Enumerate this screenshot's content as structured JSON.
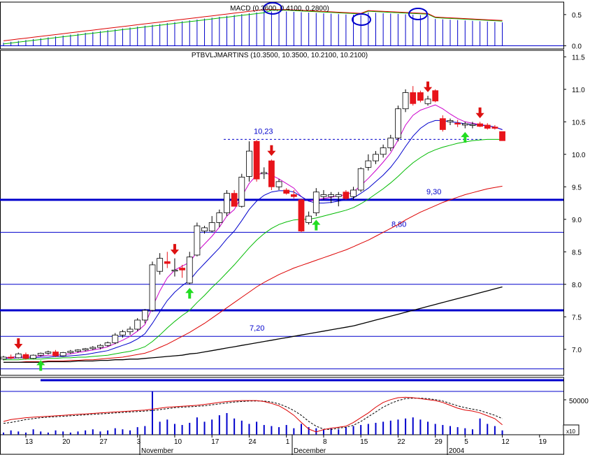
{
  "colors": {
    "up_candle": "#ffffff",
    "down_candle": "#e8141b",
    "line_blue": "#0000cc",
    "ma_fast": "#cc00cc",
    "ma_mid": "#0000cc",
    "ma_green": "#00bb00",
    "ma_red": "#dd0000",
    "ma_black": "#000000",
    "arrow_up": "#22dd22",
    "arrow_down": "#dd1111"
  },
  "chart_data": [
    {
      "type": "bar",
      "panel": "macd",
      "title": "MACD (0.3600, 0.4100, 0.2800)",
      "yticks": [
        0.0,
        0.5
      ],
      "ylim": [
        -0.05,
        0.7
      ],
      "histogram_icon": "macd-histogram",
      "circle_markers": [
        "bar-26",
        "bar-48",
        "bar-57"
      ]
    },
    {
      "type": "candlestick",
      "panel": "price",
      "title": "PTBVLJMARTINS (10.3500, 10.3500, 10.2100, 10.2100)",
      "ylim": [
        6.6,
        11.6
      ],
      "yticks": [
        7.0,
        7.5,
        8.0,
        8.5,
        9.0,
        9.5,
        10.0,
        10.5,
        11.0,
        11.5
      ],
      "xticks": [
        "13",
        "20",
        "27",
        "3",
        "10",
        "17",
        "24",
        "1",
        "8",
        "15",
        "22",
        "29",
        "5",
        "12",
        "19"
      ],
      "month_labels": [
        "November",
        "December",
        "2004"
      ],
      "ohlc": [
        [
          6.85,
          6.9,
          6.83,
          6.88
        ],
        [
          6.88,
          6.92,
          6.85,
          6.87
        ],
        [
          6.87,
          6.95,
          6.86,
          6.93
        ],
        [
          6.92,
          6.95,
          6.84,
          6.86
        ],
        [
          6.86,
          6.92,
          6.85,
          6.91
        ],
        [
          6.91,
          6.95,
          6.89,
          6.94
        ],
        [
          6.94,
          6.98,
          6.92,
          6.96
        ],
        [
          6.96,
          6.99,
          6.88,
          6.9
        ],
        [
          6.9,
          6.96,
          6.89,
          6.95
        ],
        [
          6.95,
          6.99,
          6.93,
          6.97
        ],
        [
          6.97,
          7.0,
          6.95,
          6.99
        ],
        [
          6.99,
          7.02,
          6.97,
          7.01
        ],
        [
          7.01,
          7.05,
          6.99,
          7.03
        ],
        [
          7.03,
          7.08,
          7.0,
          7.06
        ],
        [
          7.06,
          7.12,
          7.04,
          7.1
        ],
        [
          7.1,
          7.25,
          7.08,
          7.22
        ],
        [
          7.22,
          7.3,
          7.18,
          7.27
        ],
        [
          7.27,
          7.35,
          7.22,
          7.31
        ],
        [
          7.31,
          7.48,
          7.28,
          7.45
        ],
        [
          7.45,
          7.62,
          7.4,
          7.6
        ],
        [
          7.6,
          8.35,
          7.58,
          8.3
        ],
        [
          8.2,
          8.48,
          8.15,
          8.4
        ],
        [
          8.35,
          8.5,
          8.25,
          8.32
        ],
        [
          8.22,
          8.4,
          8.12,
          8.22
        ],
        [
          8.25,
          8.3,
          8.1,
          8.22
        ],
        [
          8.02,
          8.5,
          8.0,
          8.42
        ],
        [
          8.45,
          8.95,
          8.43,
          8.9
        ],
        [
          8.82,
          8.9,
          8.78,
          8.87
        ],
        [
          8.82,
          9.05,
          8.8,
          8.95
        ],
        [
          8.95,
          9.15,
          8.88,
          9.1
        ],
        [
          9.1,
          9.45,
          9.05,
          9.4
        ],
        [
          9.4,
          9.45,
          9.2,
          9.2
        ],
        [
          9.2,
          9.7,
          9.18,
          9.65
        ],
        [
          9.66,
          10.2,
          9.58,
          10.05
        ],
        [
          10.2,
          10.22,
          9.58,
          9.62
        ],
        [
          9.7,
          9.8,
          9.62,
          9.72
        ],
        [
          9.9,
          9.92,
          9.45,
          9.5
        ],
        [
          9.5,
          9.62,
          9.45,
          9.58
        ],
        [
          9.45,
          9.48,
          9.38,
          9.4
        ],
        [
          9.38,
          9.45,
          9.32,
          9.35
        ],
        [
          9.3,
          9.32,
          8.8,
          8.82
        ],
        [
          8.95,
          9.12,
          8.92,
          9.05
        ],
        [
          9.1,
          9.48,
          9.05,
          9.42
        ],
        [
          9.35,
          9.45,
          9.3,
          9.38
        ],
        [
          9.35,
          9.42,
          9.25,
          9.38
        ],
        [
          9.35,
          9.42,
          9.2,
          9.38
        ],
        [
          9.42,
          9.45,
          9.3,
          9.32
        ],
        [
          9.35,
          9.5,
          9.3,
          9.45
        ],
        [
          9.45,
          9.8,
          9.42,
          9.78
        ],
        [
          9.8,
          10.0,
          9.75,
          9.9
        ],
        [
          9.9,
          10.05,
          9.85,
          10.0
        ],
        [
          10.0,
          10.15,
          9.95,
          10.1
        ],
        [
          10.1,
          10.3,
          10.05,
          10.25
        ],
        [
          10.25,
          10.75,
          10.2,
          10.7
        ],
        [
          10.7,
          11.0,
          10.65,
          10.95
        ],
        [
          10.95,
          11.05,
          10.75,
          10.78
        ],
        [
          10.95,
          10.98,
          10.8,
          10.83
        ],
        [
          10.78,
          10.9,
          10.75,
          10.85
        ],
        [
          10.98,
          11.0,
          10.8,
          10.82
        ],
        [
          10.55,
          10.6,
          10.35,
          10.38
        ],
        [
          10.5,
          10.55,
          10.45,
          10.52
        ],
        [
          10.48,
          10.53,
          10.42,
          10.47
        ],
        [
          10.45,
          10.5,
          10.4,
          10.47
        ],
        [
          10.45,
          10.5,
          10.4,
          10.46
        ],
        [
          10.47,
          10.5,
          10.42,
          10.43
        ],
        [
          10.45,
          10.48,
          10.38,
          10.4
        ],
        [
          10.42,
          10.45,
          10.38,
          10.4
        ],
        [
          10.35,
          10.35,
          10.21,
          10.21
        ]
      ],
      "series": [
        {
          "name": "MA fast",
          "color_key": "ma_fast",
          "values": [
            6.87,
            6.88,
            6.89,
            6.89,
            6.89,
            6.9,
            6.91,
            6.91,
            6.92,
            6.93,
            6.95,
            6.97,
            6.99,
            7.01,
            7.04,
            7.09,
            7.14,
            7.2,
            7.28,
            7.38,
            7.65,
            7.9,
            8.1,
            8.22,
            8.28,
            8.34,
            8.5,
            8.62,
            8.74,
            8.88,
            9.05,
            9.15,
            9.35,
            9.55,
            9.68,
            9.72,
            9.68,
            9.62,
            9.55,
            9.48,
            9.35,
            9.28,
            9.3,
            9.32,
            9.34,
            9.36,
            9.38,
            9.42,
            9.52,
            9.63,
            9.75,
            9.88,
            10.02,
            10.22,
            10.45,
            10.6,
            10.68,
            10.72,
            10.76,
            10.7,
            10.62,
            10.55,
            10.5,
            10.48,
            10.46,
            10.44,
            10.42,
            10.38
          ]
        },
        {
          "name": "MA mid",
          "color_key": "ma_mid",
          "values": [
            6.86,
            6.86,
            6.87,
            6.87,
            6.87,
            6.88,
            6.88,
            6.89,
            6.89,
            6.9,
            6.91,
            6.92,
            6.94,
            6.96,
            6.98,
            7.02,
            7.06,
            7.1,
            7.16,
            7.24,
            7.4,
            7.58,
            7.75,
            7.88,
            7.98,
            8.06,
            8.2,
            8.32,
            8.44,
            8.56,
            8.7,
            8.82,
            8.98,
            9.15,
            9.28,
            9.37,
            9.42,
            9.44,
            9.44,
            9.42,
            9.35,
            9.28,
            9.25,
            9.25,
            9.26,
            9.28,
            9.3,
            9.33,
            9.4,
            9.48,
            9.58,
            9.68,
            9.8,
            9.95,
            10.12,
            10.28,
            10.4,
            10.48,
            10.52,
            10.52,
            10.5,
            10.49,
            10.47,
            10.46,
            10.45,
            10.44,
            10.42,
            10.38
          ]
        },
        {
          "name": "MA green",
          "color_key": "ma_green",
          "values": [
            6.84,
            6.84,
            6.84,
            6.85,
            6.85,
            6.85,
            6.86,
            6.86,
            6.87,
            6.87,
            6.88,
            6.88,
            6.89,
            6.9,
            6.91,
            6.93,
            6.95,
            6.97,
            7.0,
            7.04,
            7.12,
            7.22,
            7.33,
            7.43,
            7.52,
            7.6,
            7.72,
            7.83,
            7.95,
            8.06,
            8.18,
            8.3,
            8.43,
            8.56,
            8.68,
            8.78,
            8.86,
            8.92,
            8.96,
            8.99,
            9.0,
            9.0,
            9.02,
            9.05,
            9.08,
            9.11,
            9.14,
            9.18,
            9.24,
            9.31,
            9.39,
            9.47,
            9.56,
            9.66,
            9.77,
            9.87,
            9.95,
            10.02,
            10.07,
            10.11,
            10.14,
            10.17,
            10.19,
            10.21,
            10.22,
            10.23,
            10.23,
            10.23
          ]
        },
        {
          "name": "MA red",
          "color_key": "ma_red",
          "values": [
            6.8,
            6.8,
            6.8,
            6.81,
            6.81,
            6.81,
            6.82,
            6.82,
            6.82,
            6.83,
            6.83,
            6.84,
            6.84,
            6.85,
            6.86,
            6.87,
            6.88,
            6.9,
            6.92,
            6.94,
            6.98,
            7.03,
            7.08,
            7.14,
            7.2,
            7.26,
            7.33,
            7.4,
            7.48,
            7.56,
            7.64,
            7.72,
            7.8,
            7.88,
            7.96,
            8.03,
            8.09,
            8.15,
            8.2,
            8.25,
            8.29,
            8.33,
            8.37,
            8.41,
            8.45,
            8.49,
            8.53,
            8.58,
            8.63,
            8.68,
            8.74,
            8.8,
            8.86,
            8.92,
            8.99,
            9.05,
            9.11,
            9.16,
            9.21,
            9.26,
            9.3,
            9.34,
            9.38,
            9.41,
            9.44,
            9.47,
            9.49,
            9.51
          ]
        },
        {
          "name": "MA black",
          "color_key": "ma_black",
          "values": [
            6.8,
            6.8,
            6.8,
            6.8,
            6.8,
            6.8,
            6.81,
            6.81,
            6.81,
            6.81,
            6.82,
            6.82,
            6.82,
            6.83,
            6.83,
            6.84,
            6.84,
            6.85,
            6.85,
            6.86,
            6.87,
            6.88,
            6.89,
            6.9,
            6.91,
            6.93,
            6.94,
            6.96,
            6.98,
            7.0,
            7.02,
            7.04,
            7.06,
            7.08,
            7.1,
            7.12,
            7.14,
            7.16,
            7.18,
            7.2,
            7.22,
            7.24,
            7.26,
            7.28,
            7.3,
            7.32,
            7.34,
            7.36,
            7.39,
            7.42,
            7.45,
            7.48,
            7.51,
            7.54,
            7.57,
            7.6,
            7.63,
            7.66,
            7.69,
            7.72,
            7.75,
            7.78,
            7.81,
            7.84,
            7.87,
            7.9,
            7.93,
            7.96
          ]
        }
      ],
      "hlines": [
        {
          "value": 10.23,
          "label": "10,23",
          "style": "dashed"
        },
        {
          "value": 9.3,
          "label": "9,30",
          "style": "thick"
        },
        {
          "value": 8.8,
          "label": "8,80",
          "style": "thin"
        },
        {
          "value": 8.0,
          "label": "",
          "style": "thin"
        },
        {
          "value": 7.6,
          "label": "",
          "style": "thick"
        },
        {
          "value": 7.2,
          "label": "7,20",
          "style": "thin"
        },
        {
          "value": 6.7,
          "label": "",
          "style": "thin"
        }
      ],
      "arrows": [
        {
          "bar": 2,
          "dir": "down"
        },
        {
          "bar": 5,
          "dir": "up"
        },
        {
          "bar": 23,
          "dir": "down"
        },
        {
          "bar": 25,
          "dir": "up"
        },
        {
          "bar": 36,
          "dir": "down"
        },
        {
          "bar": 42,
          "dir": "up"
        },
        {
          "bar": 57,
          "dir": "down"
        },
        {
          "bar": 62,
          "dir": "up"
        },
        {
          "bar": 64,
          "dir": "down"
        }
      ]
    },
    {
      "type": "line",
      "panel": "stochastic_volume",
      "ytick_label": "50000",
      "corner_label": "x10",
      "stochastic_k": [
        22,
        26,
        28,
        30,
        31,
        32,
        33,
        34,
        35,
        36,
        37,
        38,
        39,
        40,
        41,
        42,
        43,
        44,
        45,
        46,
        48,
        50,
        52,
        53,
        54,
        55,
        56,
        58,
        60,
        62,
        64,
        65,
        66,
        66,
        66,
        64,
        60,
        55,
        46,
        35,
        20,
        6,
        0,
        5,
        8,
        10,
        12,
        20,
        30,
        40,
        52,
        62,
        68,
        72,
        73,
        72,
        70,
        68,
        66,
        62,
        56,
        50,
        46,
        44,
        40,
        34,
        28,
        15
      ],
      "stochastic_d": [
        18,
        20,
        23,
        26,
        28,
        30,
        31,
        32,
        33,
        34,
        35,
        36,
        37,
        38,
        39,
        40,
        41,
        42,
        43,
        44,
        45,
        47,
        49,
        51,
        52,
        53,
        54,
        55,
        57,
        59,
        61,
        63,
        64,
        65,
        65,
        65,
        63,
        59,
        53,
        45,
        35,
        22,
        12,
        6,
        5,
        8,
        10,
        14,
        22,
        32,
        42,
        52,
        60,
        66,
        70,
        71,
        71,
        70,
        68,
        65,
        60,
        55,
        51,
        48,
        45,
        40,
        35,
        28
      ],
      "volume": [
        2,
        4,
        3,
        2,
        5,
        3,
        2,
        4,
        3,
        2,
        3,
        4,
        5,
        3,
        4,
        6,
        5,
        4,
        7,
        8,
        40,
        12,
        14,
        10,
        9,
        11,
        16,
        12,
        14,
        18,
        20,
        15,
        13,
        10,
        12,
        9,
        8,
        7,
        9,
        6,
        10,
        7,
        6,
        5,
        6,
        5,
        7,
        8,
        9,
        10,
        11,
        12,
        13,
        14,
        15,
        16,
        14,
        12,
        10,
        9,
        8,
        7,
        6,
        5,
        15,
        10,
        8,
        4
      ]
    }
  ]
}
